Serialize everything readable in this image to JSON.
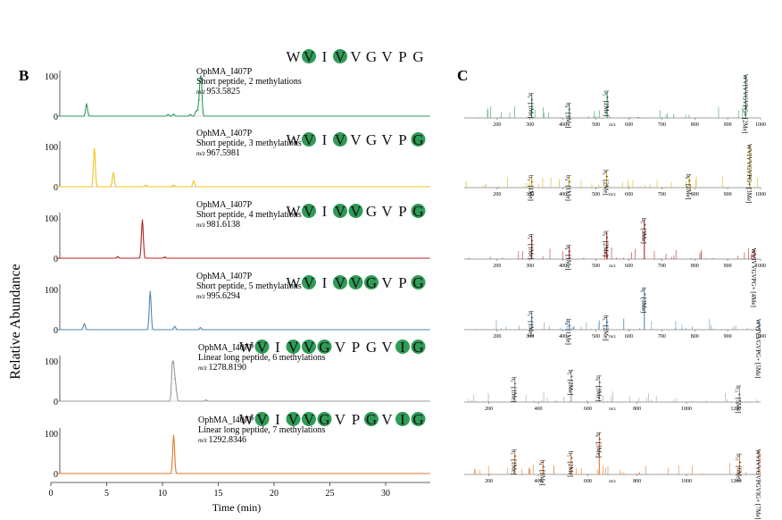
{
  "panels": {
    "left_label": "B",
    "right_label": "C"
  },
  "axis": {
    "ylabel": "Relative Abundance",
    "xlabel": "Time (min)",
    "x_ticks": [
      "0",
      "5",
      "10",
      "15",
      "20",
      "25",
      "30"
    ],
    "x_range": [
      0,
      34
    ]
  },
  "chromatograms": [
    {
      "name": "OphMA_I407P",
      "desc": "Short peptide, 2 methylations",
      "mz_prefix": "m/z",
      "mz": "953.5825",
      "color": "#2e9b57",
      "ymax_label": "100",
      "yzero_label": "0",
      "seq": [
        {
          "l": "W",
          "m": false
        },
        {
          "l": "V",
          "m": true
        },
        {
          "l": "I",
          "m": false
        },
        {
          "l": "V",
          "m": true
        },
        {
          "l": "V",
          "m": false
        },
        {
          "l": "G",
          "m": false
        },
        {
          "l": "V",
          "m": false
        },
        {
          "l": "P",
          "m": false
        },
        {
          "l": "G",
          "m": false
        }
      ],
      "peaks": [
        [
          3.2,
          0.3
        ],
        [
          10.5,
          0.04
        ],
        [
          11.0,
          0.05
        ],
        [
          12.5,
          0.04
        ],
        [
          13.0,
          0.12
        ],
        [
          13.2,
          0.14
        ],
        [
          13.35,
          0.4
        ],
        [
          13.45,
          0.95
        ]
      ]
    },
    {
      "name": "OphMA_I407P",
      "desc": "Short peptide, 3 methylations",
      "mz_prefix": "m/z",
      "mz": "967.5981",
      "color": "#f0c419",
      "ymax_label": "100",
      "yzero_label": "0",
      "seq": [
        {
          "l": "W",
          "m": false
        },
        {
          "l": "V",
          "m": true
        },
        {
          "l": "I",
          "m": false
        },
        {
          "l": "V",
          "m": true
        },
        {
          "l": "V",
          "m": false
        },
        {
          "l": "G",
          "m": false
        },
        {
          "l": "V",
          "m": false
        },
        {
          "l": "P",
          "m": false
        },
        {
          "l": "G",
          "m": true
        }
      ],
      "peaks": [
        [
          3.9,
          0.95
        ],
        [
          5.6,
          0.35
        ],
        [
          12.8,
          0.15
        ],
        [
          8.5,
          0.04
        ],
        [
          11.0,
          0.04
        ]
      ]
    },
    {
      "name": "OphMA_I407P",
      "desc": "Short peptide, 4 methylations",
      "mz_prefix": "m/z",
      "mz": "981.6138",
      "color": "#b22222",
      "ymax_label": "100",
      "yzero_label": "0",
      "seq": [
        {
          "l": "W",
          "m": false
        },
        {
          "l": "V",
          "m": true
        },
        {
          "l": "I",
          "m": false
        },
        {
          "l": "V",
          "m": true
        },
        {
          "l": "V",
          "m": true
        },
        {
          "l": "G",
          "m": false
        },
        {
          "l": "V",
          "m": false
        },
        {
          "l": "P",
          "m": false
        },
        {
          "l": "G",
          "m": true
        }
      ],
      "peaks": [
        [
          8.2,
          0.95
        ],
        [
          6.0,
          0.04
        ],
        [
          10.2,
          0.03
        ]
      ]
    },
    {
      "name": "OphMA_I407P",
      "desc": "Short peptide, 5 methylations",
      "mz_prefix": "m/z",
      "mz": "995.6294",
      "color": "#4f88b8",
      "ymax_label": "100",
      "yzero_label": "0",
      "seq": [
        {
          "l": "W",
          "m": false
        },
        {
          "l": "V",
          "m": true
        },
        {
          "l": "I",
          "m": false
        },
        {
          "l": "V",
          "m": true
        },
        {
          "l": "V",
          "m": true
        },
        {
          "l": "G",
          "m": true
        },
        {
          "l": "V",
          "m": false
        },
        {
          "l": "P",
          "m": false
        },
        {
          "l": "G",
          "m": true
        }
      ],
      "peaks": [
        [
          8.9,
          0.95
        ],
        [
          3.0,
          0.15
        ],
        [
          11.1,
          0.08
        ],
        [
          13.4,
          0.05
        ]
      ]
    },
    {
      "name": "OphMA_I407P",
      "desc": "Linear long peptide, 6 methylations",
      "mz_prefix": "m/z",
      "mz": "1278.8190",
      "color": "#999999",
      "ymax_label": "100",
      "yzero_label": "0",
      "seq": [
        {
          "l": "W",
          "m": false
        },
        {
          "l": "V",
          "m": true
        },
        {
          "l": "I",
          "m": false
        },
        {
          "l": "V",
          "m": true
        },
        {
          "l": "V",
          "m": true
        },
        {
          "l": "G",
          "m": true
        },
        {
          "l": "V",
          "m": false
        },
        {
          "l": "P",
          "m": false
        },
        {
          "l": "G",
          "m": false
        },
        {
          "l": "V",
          "m": false
        },
        {
          "l": "I",
          "m": true
        },
        {
          "l": "G",
          "m": true
        }
      ],
      "peaks": [
        [
          10.9,
          0.95
        ],
        [
          11.05,
          0.55
        ],
        [
          11.2,
          0.3
        ],
        [
          13.9,
          0.03
        ]
      ]
    },
    {
      "name": "OphMA_I407P",
      "desc": "Linear long peptide, 7 methylations",
      "mz_prefix": "m/z",
      "mz": "1292.8346",
      "color": "#e8752a",
      "ymax_label": "100",
      "yzero_label": "0",
      "seq": [
        {
          "l": "W",
          "m": false
        },
        {
          "l": "V",
          "m": true
        },
        {
          "l": "I",
          "m": false
        },
        {
          "l": "V",
          "m": true
        },
        {
          "l": "V",
          "m": true
        },
        {
          "l": "G",
          "m": true
        },
        {
          "l": "V",
          "m": false
        },
        {
          "l": "P",
          "m": false
        },
        {
          "l": "G",
          "m": true
        },
        {
          "l": "V",
          "m": false
        },
        {
          "l": "I",
          "m": true
        },
        {
          "l": "G",
          "m": true
        }
      ],
      "peaks": [
        [
          11.0,
          0.95
        ]
      ]
    }
  ],
  "spectra": [
    {
      "color": "#2e9b57",
      "xlabel": "m/z",
      "xmin": 100,
      "xmax": 1000,
      "ticks": [
        "200",
        "300",
        "400",
        "500",
        "600",
        "700",
        "800",
        "900",
        "1000"
      ],
      "annotations": [
        {
          "x": 305,
          "h": 0.55,
          "label": "b₃⁺ [1Me]"
        },
        {
          "x": 419,
          "h": 0.32,
          "label": "b₄⁺ [1Me]"
        },
        {
          "x": 534,
          "h": 0.6,
          "label": "b₅⁺ [2Me]"
        },
        {
          "x": 955,
          "h": 0.98,
          "label": "WVIVVGVPG+ [2Me]"
        }
      ]
    },
    {
      "color": "#d4ac0d",
      "xlabel": "m/z",
      "xmin": 100,
      "xmax": 1000,
      "ticks": [
        "200",
        "300",
        "400",
        "500",
        "600",
        "700",
        "800",
        "900",
        "1000"
      ],
      "annotations": [
        {
          "x": 305,
          "h": 0.25,
          "label": "b₃⁺ [1Me]"
        },
        {
          "x": 418,
          "h": 0.25,
          "label": "b₄⁺ [1Me]"
        },
        {
          "x": 532,
          "h": 0.38,
          "label": "b₅⁺ [2Me]"
        },
        {
          "x": 783,
          "h": 0.28,
          "label": "b₈⁺ [2Me]"
        },
        {
          "x": 967,
          "h": 0.98,
          "label": "WVIVVGVPG+ [3Me]"
        }
      ]
    },
    {
      "color": "#b22222",
      "xlabel": "m/z",
      "xmin": 100,
      "xmax": 1000,
      "ticks": [
        "200",
        "300",
        "400",
        "500",
        "600",
        "700",
        "800",
        "900",
        "1000"
      ],
      "annotations": [
        {
          "x": 305,
          "h": 0.55,
          "label": "b₃⁺ [1Me]"
        },
        {
          "x": 419,
          "h": 0.3,
          "label": "b₄⁺ [1Me]"
        },
        {
          "x": 533,
          "h": 0.62,
          "label": "b₅⁺ [2Me]"
        },
        {
          "x": 647,
          "h": 0.92,
          "label": "b₆⁺ [3Me]"
        },
        {
          "x": 981,
          "h": 0.22,
          "label": "WVIVVGVPG+ [4Me]"
        }
      ]
    },
    {
      "color": "#4f88b8",
      "xlabel": "m/z",
      "xmin": 100,
      "xmax": 1000,
      "ticks": [
        "200",
        "300",
        "400",
        "500",
        "600",
        "700",
        "800",
        "900",
        "1000"
      ],
      "annotations": [
        {
          "x": 305,
          "h": 0.4,
          "label": "b₃⁺ [1Me]"
        },
        {
          "x": 419,
          "h": 0.2,
          "label": "b₄⁺ [1Me]"
        },
        {
          "x": 533,
          "h": 0.3,
          "label": "b₅⁺ [2Me]"
        },
        {
          "x": 647,
          "h": 0.95,
          "label": "b₆⁺ [3Me]"
        },
        {
          "x": 995,
          "h": 0.18,
          "label": "WVIVVGVPG+ [5Me]"
        }
      ]
    },
    {
      "color": "#999999",
      "xlabel": "m/z",
      "xmin": 100,
      "xmax": 1300,
      "ticks": [
        "200",
        "400",
        "600",
        "800",
        "1000",
        "1200"
      ],
      "annotations": [
        {
          "x": 305,
          "h": 0.55,
          "label": "b₃⁺ [1Me]"
        },
        {
          "x": 533,
          "h": 0.72,
          "label": "b₅⁺ [2Me]"
        },
        {
          "x": 647,
          "h": 0.58,
          "label": "b₆⁺ [3Me]"
        },
        {
          "x": 1214,
          "h": 0.35,
          "label": "b₁₁⁺ [5Me]"
        }
      ]
    },
    {
      "color": "#e8752a",
      "xlabel": "m/z",
      "xmin": 100,
      "xmax": 1300,
      "ticks": [
        "200",
        "400",
        "600",
        "800",
        "1000",
        "1200"
      ],
      "annotations": [
        {
          "x": 305,
          "h": 0.55,
          "label": "b₃⁺ [1Me]"
        },
        {
          "x": 419,
          "h": 0.3,
          "label": "b₄⁺ [1Me]"
        },
        {
          "x": 533,
          "h": 0.5,
          "label": "b₅⁺ [2Me]"
        },
        {
          "x": 647,
          "h": 0.95,
          "label": "b₆⁺ [3Me]"
        },
        {
          "x": 1215,
          "h": 0.45,
          "label": "b₁₁⁺ [6Me]"
        },
        {
          "x": 1292,
          "h": 0.55,
          "label": "WVIVVGVPGVIG+ [7Me]"
        }
      ]
    }
  ],
  "chart_data": [
    {
      "type": "line",
      "title": "",
      "xlabel": "Time (min)",
      "ylabel": "Relative Abundance",
      "xlim": [
        0,
        34
      ],
      "ylim": [
        0,
        100
      ],
      "series": [
        {
          "name": "",
          "values": [
            [
              3.2,
              30
            ],
            [
              13.45,
              95
            ]
          ]
        },
        {
          "name": "",
          "values": [
            [
              3.9,
              95
            ],
            [
              5.6,
              35
            ]
          ]
        },
        {
          "name": "",
          "values": [
            [
              8.2,
              95
            ]
          ]
        },
        {
          "name": "",
          "values": [
            [
              8.9,
              95
            ]
          ]
        },
        {
          "name": "",
          "values": [
            [
              10.9,
              95
            ]
          ]
        },
        {
          "name": "",
          "values": [
            [
              11.0,
              95
            ]
          ]
        }
      ]
    },
    {
      "type": "bar",
      "title": "",
      "xlabel": "m/z",
      "ylabel": "",
      "xlim": [
        100,
        1300
      ],
      "categories": [],
      "values": []
    }
  ]
}
